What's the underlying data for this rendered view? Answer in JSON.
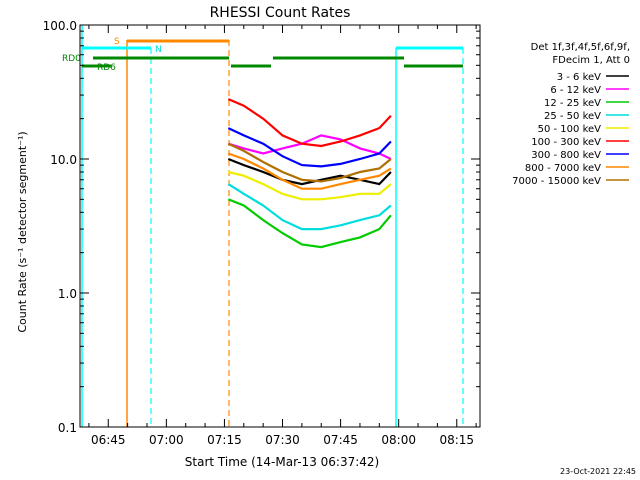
{
  "chart_data": {
    "type": "line",
    "title": "RHESSI Count Rates",
    "xlabel": "Start Time (14-Mar-13 06:37:42)",
    "ylabel": "Count Rate (s⁻¹ detector segment⁻¹)",
    "y_scale": "log",
    "ylim": [
      0.1,
      100
    ],
    "xlim": [
      "06:37:42",
      "08:21:00"
    ],
    "x_ticks": [
      "06:45",
      "07:00",
      "07:15",
      "07:30",
      "07:45",
      "08:00",
      "08:15"
    ],
    "y_ticks": [
      "0.1",
      "1.0",
      "10.0",
      "100.0"
    ],
    "grid": false,
    "legend_position": "right",
    "legend_header": [
      "Det 1f,3f,4f,5f,6f,9f,",
      "FDecim 1, Att 0"
    ],
    "timestamp": "23-Oct-2021 22:45",
    "series": [
      {
        "name": "3 - 6 keV",
        "color": "#000000",
        "x": [
          "07:16",
          "07:20",
          "07:25",
          "07:30",
          "07:35",
          "07:40",
          "07:45",
          "07:50",
          "07:55",
          "07:58"
        ],
        "y": [
          10.0,
          9.0,
          8.0,
          7.0,
          6.5,
          7.0,
          7.5,
          7.0,
          6.5,
          8.0
        ]
      },
      {
        "name": "6 - 12 keV",
        "color": "#ff00ff",
        "x": [
          "07:16",
          "07:20",
          "07:25",
          "07:30",
          "07:35",
          "07:40",
          "07:45",
          "07:50",
          "07:55",
          "07:58"
        ],
        "y": [
          13.0,
          12.0,
          11.0,
          12.0,
          13.0,
          15.0,
          14.0,
          12.0,
          11.0,
          10.0
        ]
      },
      {
        "name": "12 - 25 keV",
        "color": "#00cc00",
        "x": [
          "07:16",
          "07:20",
          "07:25",
          "07:30",
          "07:35",
          "07:40",
          "07:45",
          "07:50",
          "07:55",
          "07:58"
        ],
        "y": [
          5.0,
          4.5,
          3.5,
          2.8,
          2.3,
          2.2,
          2.4,
          2.6,
          3.0,
          3.8
        ]
      },
      {
        "name": "25 - 50 keV",
        "color": "#00dddd",
        "x": [
          "07:16",
          "07:20",
          "07:25",
          "07:30",
          "07:35",
          "07:40",
          "07:45",
          "07:50",
          "07:55",
          "07:58"
        ],
        "y": [
          6.5,
          5.5,
          4.5,
          3.5,
          3.0,
          3.0,
          3.2,
          3.5,
          3.8,
          4.5
        ]
      },
      {
        "name": "50 - 100 keV",
        "color": "#eeee00",
        "x": [
          "07:16",
          "07:20",
          "07:25",
          "07:30",
          "07:35",
          "07:40",
          "07:45",
          "07:50",
          "07:55",
          "07:58"
        ],
        "y": [
          8.0,
          7.5,
          6.5,
          5.5,
          5.0,
          5.0,
          5.2,
          5.5,
          5.5,
          6.5
        ]
      },
      {
        "name": "100 - 300 keV",
        "color": "#ff0000",
        "x": [
          "07:16",
          "07:20",
          "07:25",
          "07:30",
          "07:35",
          "07:40",
          "07:45",
          "07:50",
          "07:55",
          "07:58"
        ],
        "y": [
          28.0,
          25.0,
          20.0,
          15.0,
          13.0,
          12.5,
          13.5,
          15.0,
          17.0,
          21.0
        ]
      },
      {
        "name": "300 - 800 keV",
        "color": "#0000ff",
        "x": [
          "07:16",
          "07:20",
          "07:25",
          "07:30",
          "07:35",
          "07:40",
          "07:45",
          "07:50",
          "07:55",
          "07:58"
        ],
        "y": [
          17.0,
          15.0,
          13.0,
          10.5,
          9.0,
          8.8,
          9.2,
          10.0,
          11.0,
          13.5
        ]
      },
      {
        "name": "800 - 7000 keV",
        "color": "#ff8800",
        "x": [
          "07:16",
          "07:20",
          "07:25",
          "07:30",
          "07:35",
          "07:40",
          "07:45",
          "07:50",
          "07:55",
          "07:58"
        ],
        "y": [
          11.0,
          10.0,
          8.5,
          7.0,
          6.0,
          6.0,
          6.5,
          7.0,
          7.5,
          8.5
        ]
      },
      {
        "name": "7000 - 15000 keV",
        "color": "#b07000",
        "x": [
          "07:16",
          "07:20",
          "07:25",
          "07:30",
          "07:35",
          "07:40",
          "07:45",
          "07:50",
          "07:55",
          "07:58"
        ],
        "y": [
          13.0,
          11.5,
          9.5,
          8.0,
          7.0,
          6.8,
          7.2,
          8.0,
          8.5,
          10.0
        ]
      }
    ],
    "flag_labels": [
      "S",
      "N",
      "RD0",
      "RD6"
    ],
    "colors": {
      "background": "#ffffff",
      "axes": "#000000",
      "saa": "#ff8800",
      "night": "#00ffff",
      "radiation": "#008800"
    }
  }
}
